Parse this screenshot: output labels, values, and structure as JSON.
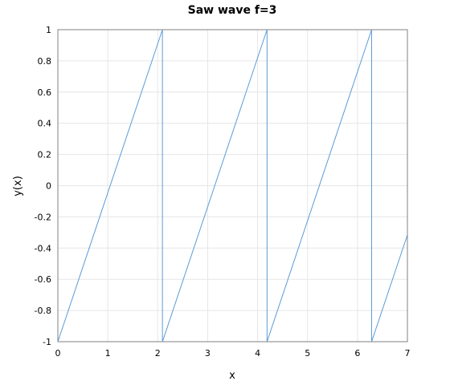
{
  "chart_data": {
    "type": "line",
    "title": "Saw wave f=3",
    "xlabel": "x",
    "ylabel": "y(x)",
    "xlim": [
      0,
      7
    ],
    "ylim": [
      -1,
      1
    ],
    "xticks": [
      "0",
      "1",
      "2",
      "3",
      "4",
      "5",
      "6",
      "7"
    ],
    "yticks": [
      "-1",
      "-0.8",
      "-0.6",
      "-0.4",
      "-0.2",
      "0",
      "0.2",
      "0.4",
      "0.6",
      "0.8",
      "1"
    ],
    "grid": true,
    "legend": "none",
    "series": [
      {
        "color": "#5b9bd5",
        "x": [
          0,
          2.0944,
          2.0944,
          4.1888,
          4.1888,
          6.2832,
          6.2832,
          7
        ],
        "y": [
          -1,
          1,
          -1,
          1,
          -1,
          1,
          -1,
          -0.3155
        ]
      }
    ]
  }
}
